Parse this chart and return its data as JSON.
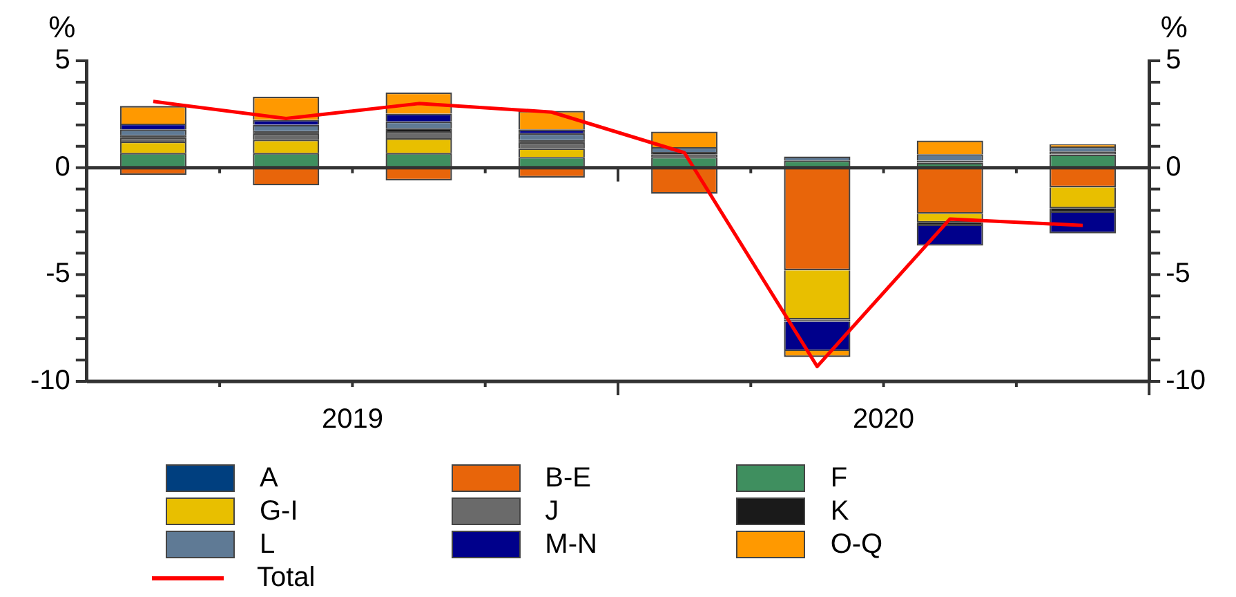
{
  "chart_data": {
    "type": "bar",
    "stacked": true,
    "categories": [
      null,
      null,
      null,
      null,
      null,
      null,
      null,
      null
    ],
    "annotations": [
      "2019",
      "2020"
    ],
    "ylabel": "%",
    "y2label": "%",
    "ylim": [
      -10,
      5
    ],
    "yticks": [
      {
        "value": -10,
        "label": "-10"
      },
      {
        "value": -9,
        "label": null
      },
      {
        "value": -8,
        "label": null
      },
      {
        "value": -7,
        "label": null
      },
      {
        "value": -6,
        "label": null
      },
      {
        "value": -5,
        "label": "-5"
      },
      {
        "value": -4,
        "label": null
      },
      {
        "value": -3,
        "label": null
      },
      {
        "value": -2,
        "label": null
      },
      {
        "value": -1,
        "label": null
      },
      {
        "value": 0,
        "label": "0"
      },
      {
        "value": 1,
        "label": null
      },
      {
        "value": 2,
        "label": null
      },
      {
        "value": 3,
        "label": null
      },
      {
        "value": 4,
        "label": null
      },
      {
        "value": 5,
        "label": "5"
      }
    ],
    "y2lim": [
      -10,
      5
    ],
    "y2ticks": [
      {
        "value": -10,
        "label": "-10"
      },
      {
        "value": -9,
        "label": null
      },
      {
        "value": -8,
        "label": null
      },
      {
        "value": -7,
        "label": null
      },
      {
        "value": -6,
        "label": null
      },
      {
        "value": -5,
        "label": "-5"
      },
      {
        "value": -4,
        "label": null
      },
      {
        "value": -3,
        "label": null
      },
      {
        "value": -2,
        "label": null
      },
      {
        "value": -1,
        "label": null
      },
      {
        "value": 0,
        "label": "0"
      },
      {
        "value": 1,
        "label": null
      },
      {
        "value": 2,
        "label": null
      },
      {
        "value": 3,
        "label": null
      },
      {
        "value": 4,
        "label": null
      },
      {
        "value": 5,
        "label": "5"
      }
    ],
    "legend": "bottom",
    "grid": false,
    "marker": "none",
    "ref_lines": [
      {
        "axis": "y",
        "value": 0,
        "color": "#333333"
      }
    ],
    "series": [
      {
        "name": "A",
        "color": "#003f7f",
        "values": [
          0,
          0,
          0,
          0,
          0,
          0,
          0,
          0
        ]
      },
      {
        "name": "B-E",
        "color": "#e8650a",
        "values": [
          -0.34,
          -0.83,
          -0.6,
          -0.46,
          -1.22,
          -4.8,
          -2.16,
          -0.92
        ]
      },
      {
        "name": "F",
        "color": "#3f8f5f",
        "values": [
          0.69,
          0.69,
          0.69,
          0.5,
          0.5,
          0.34,
          0.23,
          0.62
        ]
      },
      {
        "name": "G-I",
        "color": "#e8bf00",
        "values": [
          0.53,
          0.62,
          0.69,
          0.41,
          0,
          -2.3,
          -0.41,
          -0.99
        ]
      },
      {
        "name": "J",
        "color": "#6a6a6a",
        "values": [
          0.2,
          0.3,
          0.32,
          0.28,
          0.13,
          -0.1,
          0.1,
          0.14
        ]
      },
      {
        "name": "K",
        "color": "#1a1a1a",
        "values": [
          0.1,
          0.1,
          0.14,
          0.1,
          0.1,
          0,
          -0.16,
          -0.2
        ]
      },
      {
        "name": "L",
        "color": "#5f7a95",
        "values": [
          0.27,
          0.3,
          0.32,
          0.32,
          0.23,
          0.18,
          0.3,
          0.23
        ]
      },
      {
        "name": "M-N",
        "color": "#00008b",
        "values": [
          0.27,
          0.23,
          0.37,
          0.18,
          0,
          -1.38,
          -0.92,
          -0.96
        ]
      },
      {
        "name": "O-Q",
        "color": "#ff9900",
        "values": [
          0.83,
          1.08,
          0.99,
          0.87,
          0.73,
          -0.28,
          0.64,
          0.11
        ]
      },
      {
        "name": "Total",
        "type": "line",
        "color": "#ff0000",
        "values": [
          3.1,
          2.3,
          3.0,
          2.6,
          0.7,
          -9.3,
          -2.4,
          -2.7
        ]
      }
    ]
  }
}
